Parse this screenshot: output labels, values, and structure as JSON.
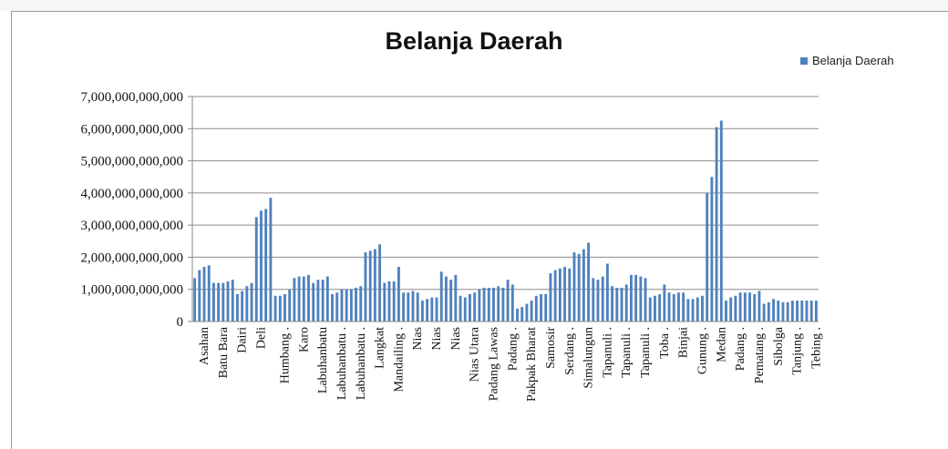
{
  "chart_data": {
    "type": "bar",
    "title": "Belanja Daerah",
    "xlabel": "",
    "ylabel": "",
    "ylim": [
      0,
      7000000000000
    ],
    "yticks": [
      0,
      1000000000000,
      2000000000000,
      3000000000000,
      4000000000000,
      5000000000000,
      6000000000000,
      7000000000000
    ],
    "ytick_labels": [
      "0",
      "1,000,000,000,000",
      "2,000,000,000,000",
      "3,000,000,000,000",
      "4,000,000,000,000",
      "5,000,000,000,000",
      "6,000,000,000,000",
      "7,000,000,000,000"
    ],
    "grid": true,
    "legend_position": "top-right",
    "series": [
      {
        "name": "Belanja Daerah",
        "color": "#4f81bd",
        "values": [
          1350000000000,
          1600000000000,
          1700000000000,
          1750000000000,
          1200000000000,
          1200000000000,
          1200000000000,
          1250000000000,
          1300000000000,
          850000000000,
          950000000000,
          1100000000000,
          1200000000000,
          3250000000000,
          3450000000000,
          3500000000000,
          3850000000000,
          800000000000,
          800000000000,
          850000000000,
          1000000000000,
          1350000000000,
          1400000000000,
          1400000000000,
          1450000000000,
          1200000000000,
          1300000000000,
          1300000000000,
          1400000000000,
          850000000000,
          900000000000,
          1000000000000,
          1000000000000,
          1000000000000,
          1050000000000,
          1100000000000,
          2150000000000,
          2200000000000,
          2250000000000,
          2400000000000,
          1200000000000,
          1250000000000,
          1250000000000,
          1700000000000,
          900000000000,
          900000000000,
          950000000000,
          900000000000,
          650000000000,
          700000000000,
          750000000000,
          750000000000,
          1550000000000,
          1400000000000,
          1300000000000,
          1450000000000,
          800000000000,
          750000000000,
          850000000000,
          900000000000,
          1000000000000,
          1050000000000,
          1050000000000,
          1050000000000,
          1100000000000,
          1050000000000,
          1300000000000,
          1150000000000,
          400000000000,
          450000000000,
          550000000000,
          650000000000,
          800000000000,
          850000000000,
          850000000000,
          1500000000000,
          1600000000000,
          1650000000000,
          1700000000000,
          1650000000000,
          2150000000000,
          2100000000000,
          2250000000000,
          2450000000000,
          1350000000000,
          1300000000000,
          1400000000000,
          1800000000000,
          1100000000000,
          1050000000000,
          1050000000000,
          1150000000000,
          1450000000000,
          1450000000000,
          1400000000000,
          1350000000000,
          750000000000,
          800000000000,
          850000000000,
          1150000000000,
          900000000000,
          850000000000,
          900000000000,
          900000000000,
          700000000000,
          700000000000,
          750000000000,
          800000000000,
          4000000000000,
          4500000000000,
          6050000000000,
          6250000000000,
          650000000000,
          750000000000,
          800000000000,
          900000000000,
          900000000000,
          900000000000,
          850000000000,
          950000000000,
          550000000000,
          600000000000,
          700000000000,
          650000000000,
          600000000000,
          600000000000,
          650000000000,
          650000000000,
          650000000000,
          650000000000,
          650000000000,
          650000000000
        ]
      }
    ],
    "x_tick_labels": [
      {
        "bar": 2,
        "label": "Asahan"
      },
      {
        "bar": 6,
        "label": "Batu Bara"
      },
      {
        "bar": 10,
        "label": "Dairi"
      },
      {
        "bar": 14,
        "label": "Deli"
      },
      {
        "bar": 19,
        "label": "Humbang ."
      },
      {
        "bar": 23,
        "label": "Karo"
      },
      {
        "bar": 27,
        "label": "Labuhanbatu"
      },
      {
        "bar": 31,
        "label": "Labuhanbatu ."
      },
      {
        "bar": 35,
        "label": "Labuhanbatu ."
      },
      {
        "bar": 39,
        "label": "Langkat"
      },
      {
        "bar": 43,
        "label": "Mandailing ."
      },
      {
        "bar": 47,
        "label": "Nias"
      },
      {
        "bar": 51,
        "label": "Nias"
      },
      {
        "bar": 55,
        "label": "Nias"
      },
      {
        "bar": 59,
        "label": "Nias Utara"
      },
      {
        "bar": 63,
        "label": "Padang Lawas"
      },
      {
        "bar": 67,
        "label": "Padang ."
      },
      {
        "bar": 71,
        "label": "Pakpak Bharat"
      },
      {
        "bar": 75,
        "label": "Samosir"
      },
      {
        "bar": 79,
        "label": "Serdang ."
      },
      {
        "bar": 83,
        "label": "Simalungun"
      },
      {
        "bar": 87,
        "label": "Tapanuli ."
      },
      {
        "bar": 91,
        "label": "Tapanuli ."
      },
      {
        "bar": 95,
        "label": "Tapanuli ."
      },
      {
        "bar": 99,
        "label": "Toba ."
      },
      {
        "bar": 103,
        "label": "Binjai"
      },
      {
        "bar": 107,
        "label": "Gunung ."
      },
      {
        "bar": 111,
        "label": "Medan"
      },
      {
        "bar": 115,
        "label": "Padang ."
      },
      {
        "bar": 119,
        "label": "Pematang ."
      },
      {
        "bar": 123,
        "label": "Sibolga"
      },
      {
        "bar": 127,
        "label": "Tanjung ."
      },
      {
        "bar": 131,
        "label": "Tebing ."
      }
    ]
  }
}
